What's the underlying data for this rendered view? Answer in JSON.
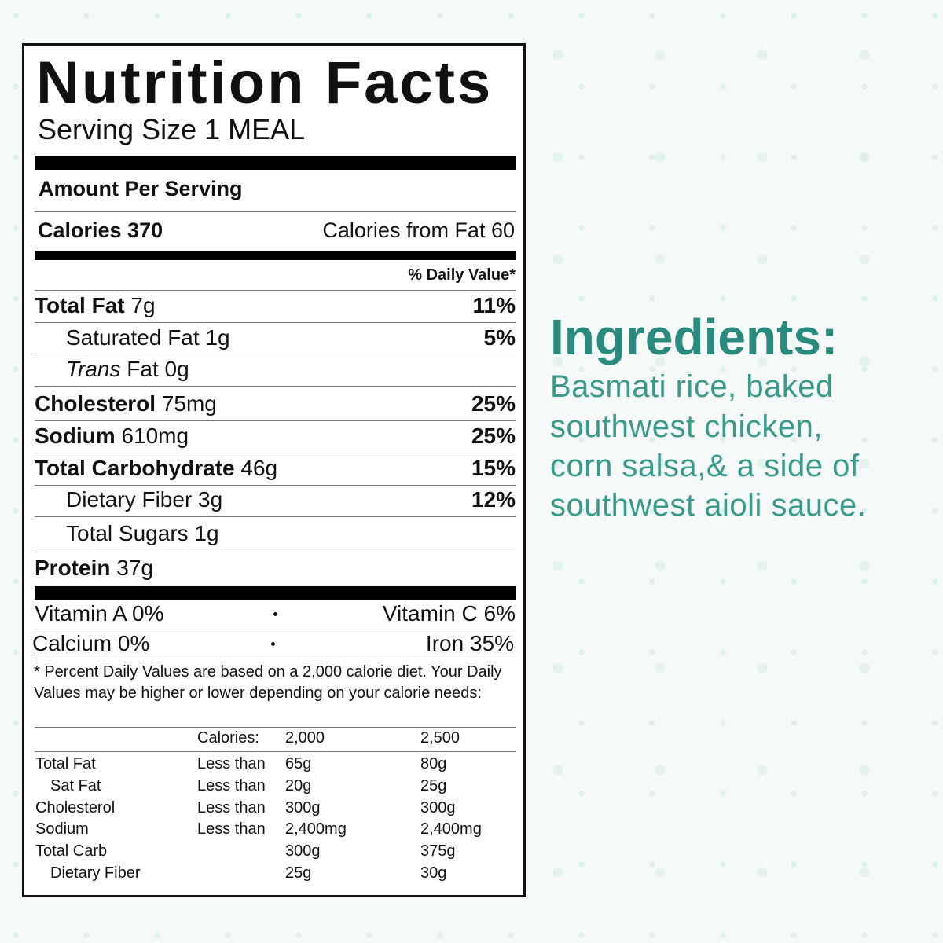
{
  "label": {
    "title": "Nutrition Facts",
    "serving_size": "Serving Size 1 MEAL",
    "amount_per_serving": "Amount Per Serving",
    "calories": "Calories 370",
    "calories_from_fat": "Calories from Fat 60",
    "daily_value_header": "% Daily Value*",
    "nutrients": [
      {
        "name": "Total Fat",
        "amount": "7g",
        "dv": "11%"
      },
      {
        "name": "Saturated Fat",
        "amount": "1g",
        "dv": "5%"
      },
      {
        "name_italic": "Trans",
        "name": "Fat",
        "amount": "0g"
      },
      {
        "name": "Cholesterol",
        "amount": "75mg",
        "dv": "25%"
      },
      {
        "name": "Sodium",
        "amount": "610mg",
        "dv": "25%"
      },
      {
        "name": "Total Carbohydrate",
        "amount": "46g",
        "dv": "15%"
      },
      {
        "name": "Dietary Fiber",
        "amount": "3g",
        "dv": "12%"
      },
      {
        "name": "Total Sugars",
        "amount": "1g"
      },
      {
        "name": "Protein",
        "amount": "37g"
      }
    ],
    "vitamins": [
      [
        "Vitamin A 0%",
        "Vitamin C 6%"
      ],
      [
        "Calcium 0%",
        "Iron 35%"
      ]
    ],
    "footnote": "* Percent Daily Values are based on a 2,000 calorie diet. Your Daily Values may be higher or lower depending on your calorie needs:",
    "table": {
      "header": [
        "Calories:",
        "2,000",
        "2,500"
      ],
      "rows": [
        {
          "nutrient": "Total Fat",
          "qualifier": "Less than",
          "v2000": "65g",
          "v2500": "80g"
        },
        {
          "nutrient": "Sat Fat",
          "qualifier": "Less than",
          "v2000": "20g",
          "v2500": "25g"
        },
        {
          "nutrient": "Cholesterol",
          "qualifier": "Less than",
          "v2000": "300g",
          "v2500": "300g"
        },
        {
          "nutrient": "Sodium",
          "qualifier": "Less than",
          "v2000": "2,400mg",
          "v2500": "2,400mg"
        },
        {
          "nutrient": "Total Carb",
          "v2000": "300g",
          "v2500": "375g"
        },
        {
          "nutrient": "Dietary Fiber",
          "v2000": "25g",
          "v2500": "30g"
        }
      ]
    }
  },
  "ingredients": {
    "title": "Ingredients:",
    "lines": [
      "Basmati rice, baked",
      "southwest chicken,",
      "corn salsa,& a side of",
      "southwest aioli sauce."
    ]
  }
}
